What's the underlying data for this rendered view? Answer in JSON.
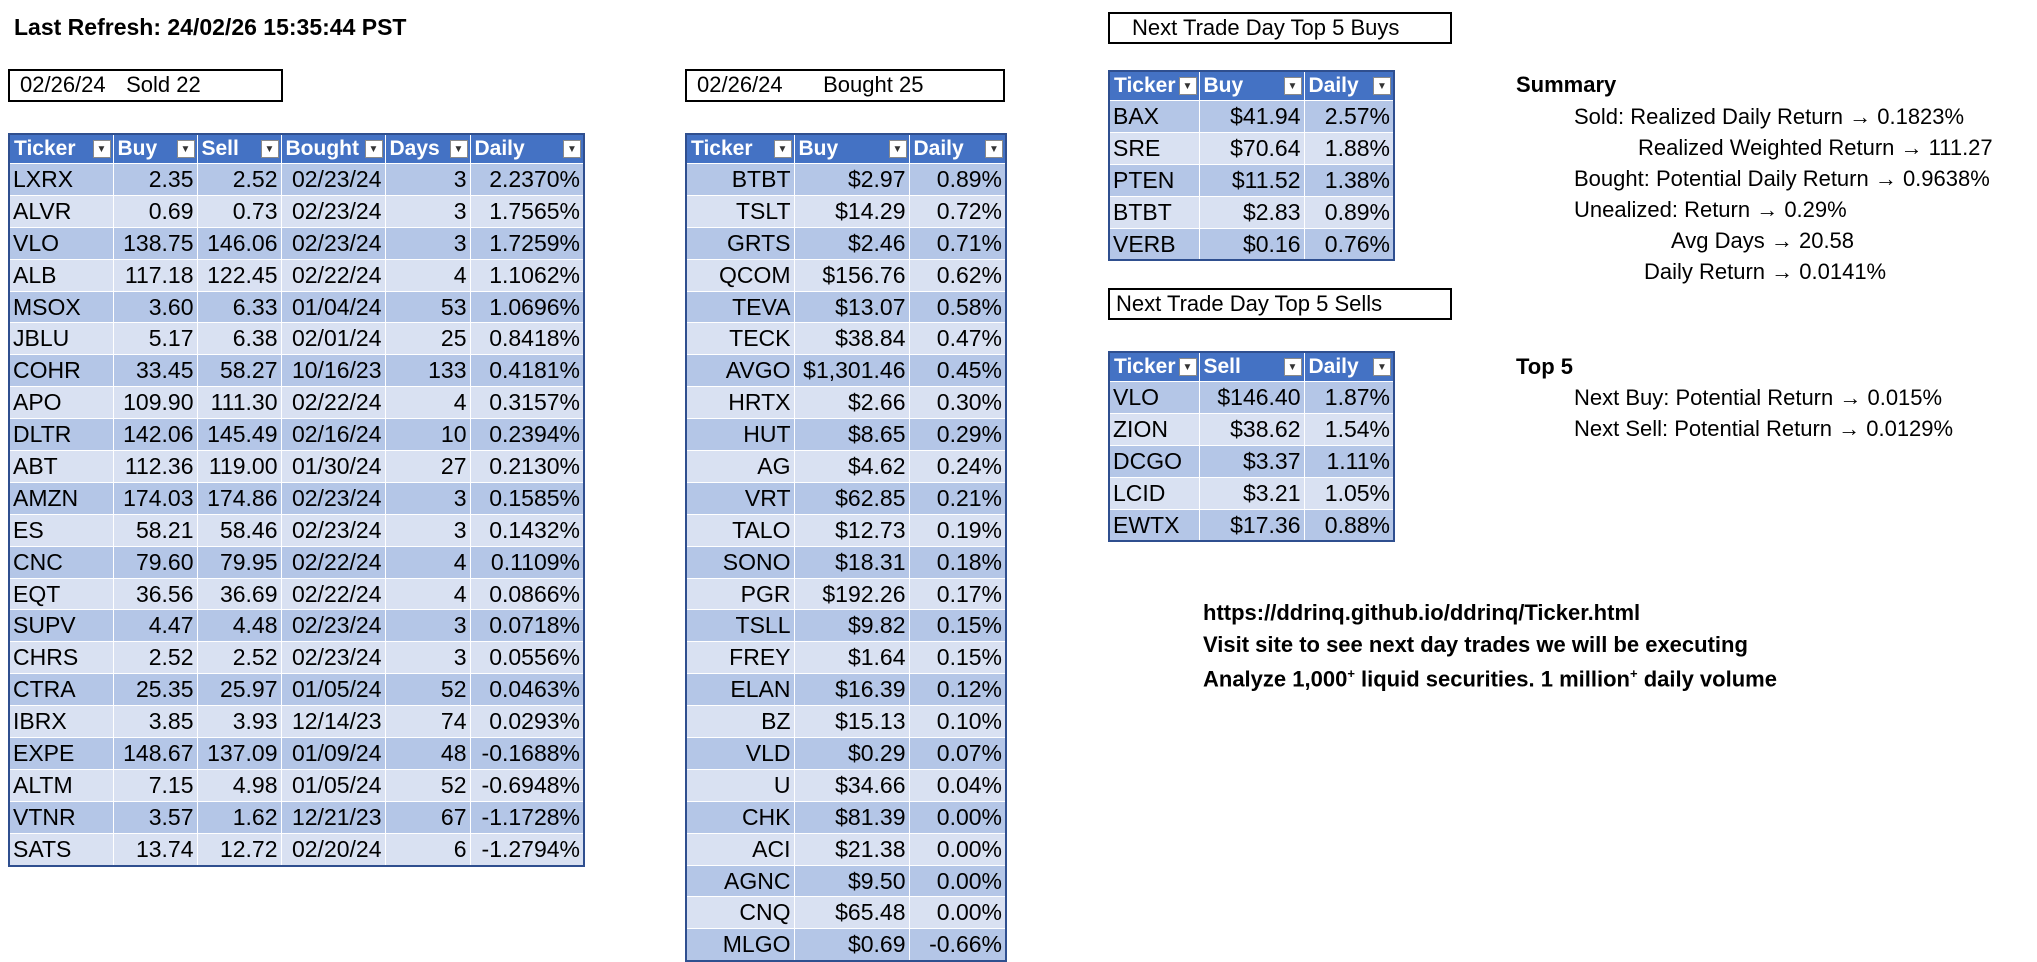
{
  "last_refresh": "Last Refresh: 24/02/26 15:35:44 PST",
  "sold_box": {
    "date": "02/26/24",
    "label": "Sold 22"
  },
  "bought_box": {
    "date": "02/26/24",
    "label": "Bought 25"
  },
  "sold_table": {
    "headers": [
      "Ticker",
      "Buy",
      "Sell",
      "Bought",
      "Days",
      "Daily"
    ],
    "rows": [
      [
        "LXRX",
        "2.35",
        "2.52",
        "02/23/24",
        "3",
        "2.2370%"
      ],
      [
        "ALVR",
        "0.69",
        "0.73",
        "02/23/24",
        "3",
        "1.7565%"
      ],
      [
        "VLO",
        "138.75",
        "146.06",
        "02/23/24",
        "3",
        "1.7259%"
      ],
      [
        "ALB",
        "117.18",
        "122.45",
        "02/22/24",
        "4",
        "1.1062%"
      ],
      [
        "MSOX",
        "3.60",
        "6.33",
        "01/04/24",
        "53",
        "1.0696%"
      ],
      [
        "JBLU",
        "5.17",
        "6.38",
        "02/01/24",
        "25",
        "0.8418%"
      ],
      [
        "COHR",
        "33.45",
        "58.27",
        "10/16/23",
        "133",
        "0.4181%"
      ],
      [
        "APO",
        "109.90",
        "111.30",
        "02/22/24",
        "4",
        "0.3157%"
      ],
      [
        "DLTR",
        "142.06",
        "145.49",
        "02/16/24",
        "10",
        "0.2394%"
      ],
      [
        "ABT",
        "112.36",
        "119.00",
        "01/30/24",
        "27",
        "0.2130%"
      ],
      [
        "AMZN",
        "174.03",
        "174.86",
        "02/23/24",
        "3",
        "0.1585%"
      ],
      [
        "ES",
        "58.21",
        "58.46",
        "02/23/24",
        "3",
        "0.1432%"
      ],
      [
        "CNC",
        "79.60",
        "79.95",
        "02/22/24",
        "4",
        "0.1109%"
      ],
      [
        "EQT",
        "36.56",
        "36.69",
        "02/22/24",
        "4",
        "0.0866%"
      ],
      [
        "SUPV",
        "4.47",
        "4.48",
        "02/23/24",
        "3",
        "0.0718%"
      ],
      [
        "CHRS",
        "2.52",
        "2.52",
        "02/23/24",
        "3",
        "0.0556%"
      ],
      [
        "CTRA",
        "25.35",
        "25.97",
        "01/05/24",
        "52",
        "0.0463%"
      ],
      [
        "IBRX",
        "3.85",
        "3.93",
        "12/14/23",
        "74",
        "0.0293%"
      ],
      [
        "EXPE",
        "148.67",
        "137.09",
        "01/09/24",
        "48",
        "-0.1688%"
      ],
      [
        "ALTM",
        "7.15",
        "4.98",
        "01/05/24",
        "52",
        "-0.6948%"
      ],
      [
        "VTNR",
        "3.57",
        "1.62",
        "12/21/23",
        "67",
        "-1.1728%"
      ],
      [
        "SATS",
        "13.74",
        "12.72",
        "02/20/24",
        "6",
        "-1.2794%"
      ]
    ]
  },
  "bought_table": {
    "headers": [
      "Ticker",
      "Buy",
      "Daily"
    ],
    "rows": [
      [
        "BTBT",
        "$2.97",
        "0.89%"
      ],
      [
        "TSLT",
        "$14.29",
        "0.72%"
      ],
      [
        "GRTS",
        "$2.46",
        "0.71%"
      ],
      [
        "QCOM",
        "$156.76",
        "0.62%"
      ],
      [
        "TEVA",
        "$13.07",
        "0.58%"
      ],
      [
        "TECK",
        "$38.84",
        "0.47%"
      ],
      [
        "AVGO",
        "$1,301.46",
        "0.45%"
      ],
      [
        "HRTX",
        "$2.66",
        "0.30%"
      ],
      [
        "HUT",
        "$8.65",
        "0.29%"
      ],
      [
        "AG",
        "$4.62",
        "0.24%"
      ],
      [
        "VRT",
        "$62.85",
        "0.21%"
      ],
      [
        "TALO",
        "$12.73",
        "0.19%"
      ],
      [
        "SONO",
        "$18.31",
        "0.18%"
      ],
      [
        "PGR",
        "$192.26",
        "0.17%"
      ],
      [
        "TSLL",
        "$9.82",
        "0.15%"
      ],
      [
        "FREY",
        "$1.64",
        "0.15%"
      ],
      [
        "ELAN",
        "$16.39",
        "0.12%"
      ],
      [
        "BZ",
        "$15.13",
        "0.10%"
      ],
      [
        "VLD",
        "$0.29",
        "0.07%"
      ],
      [
        "U",
        "$34.66",
        "0.04%"
      ],
      [
        "CHK",
        "$81.39",
        "0.00%"
      ],
      [
        "ACI",
        "$21.38",
        "0.00%"
      ],
      [
        "AGNC",
        "$9.50",
        "0.00%"
      ],
      [
        "CNQ",
        "$65.48",
        "0.00%"
      ],
      [
        "MLGO",
        "$0.69",
        "-0.66%"
      ]
    ]
  },
  "top_buys_title": "Next Trade Day Top 5 Buys",
  "top_buys_table": {
    "headers": [
      "Ticker",
      "Buy",
      "Daily"
    ],
    "rows": [
      [
        "BAX",
        "$41.94",
        "2.57%"
      ],
      [
        "SRE",
        "$70.64",
        "1.88%"
      ],
      [
        "PTEN",
        "$11.52",
        "1.38%"
      ],
      [
        "BTBT",
        "$2.83",
        "0.89%"
      ],
      [
        "VERB",
        "$0.16",
        "0.76%"
      ]
    ]
  },
  "top_sells_title": "Next Trade Day Top 5 Sells",
  "top_sells_table": {
    "headers": [
      "Ticker",
      "Sell",
      "Daily"
    ],
    "rows": [
      [
        "VLO",
        "$146.40",
        "1.87%"
      ],
      [
        "ZION",
        "$38.62",
        "1.54%"
      ],
      [
        "DCGO",
        "$3.37",
        "1.11%"
      ],
      [
        "LCID",
        "$3.21",
        "1.05%"
      ],
      [
        "EWTX",
        "$17.36",
        "0.88%"
      ]
    ]
  },
  "summary": {
    "heading": "Summary",
    "sold": "Sold: Realized Daily Return → 0.1823%",
    "weighted": "Realized Weighted Return → 111.27",
    "bought": "Bought: Potential Daily Return → 0.9638%",
    "unrealized": "Unealized: Return → 0.29%",
    "avg_days": "Avg Days → 20.58",
    "daily_return": "Daily Return → 0.0141%"
  },
  "top5": {
    "heading": "Top 5",
    "next_buy": "Next Buy: Potential Return → 0.015%",
    "next_sell": "Next Sell: Potential Return → 0.0129%"
  },
  "promo": {
    "url": "https://ddrinq.github.io/ddrinq/Ticker.html",
    "visit": "Visit site to see next day trades we will be executing",
    "analyze_a": "Analyze 1,000",
    "analyze_sup1": "+",
    "analyze_b": " liquid securities.  1 million",
    "analyze_sup2": "+",
    "analyze_c": " daily volume"
  }
}
